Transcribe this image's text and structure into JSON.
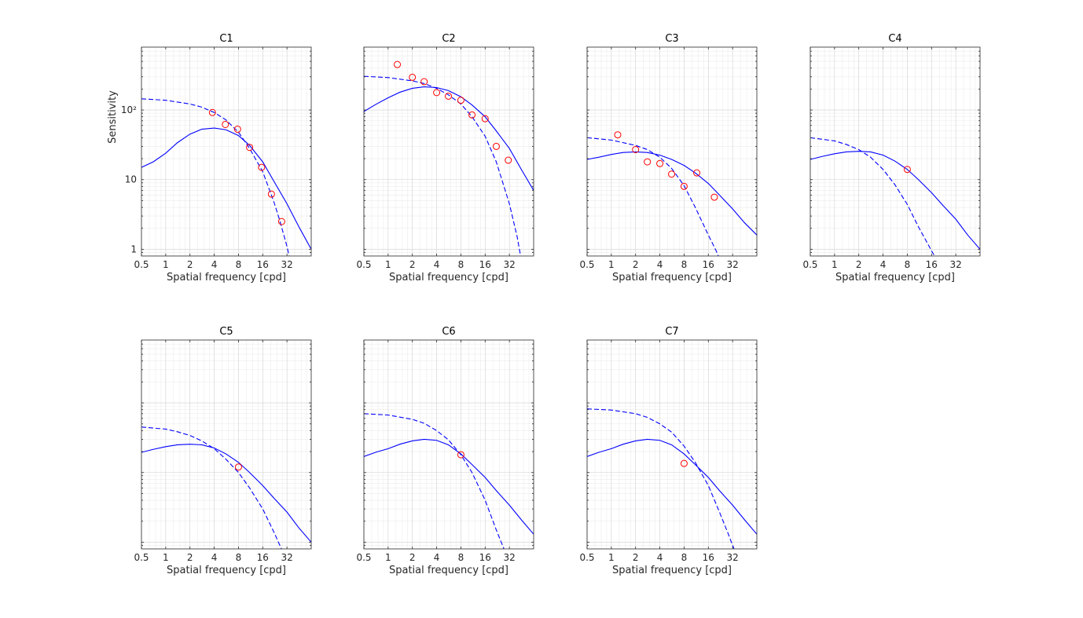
{
  "figure": {
    "xlabel": "Spatial frequency [cpd]",
    "ylabel": "Sensitivity"
  },
  "axes": {
    "xscale": "log2",
    "yscale": "log10",
    "xlim": [
      0.5,
      64
    ],
    "ylim": [
      0.8,
      800
    ],
    "xticks": [
      0.5,
      1,
      2,
      4,
      8,
      16,
      32
    ],
    "xticklabels": [
      "0.5",
      "1",
      "2",
      "4",
      "8",
      "16",
      "32"
    ],
    "yticks": [
      1,
      10,
      100
    ],
    "yticklabels": [
      "1",
      "10",
      "10²"
    ],
    "grid": true
  },
  "colors": {
    "curve": "#0000ff",
    "marker": "#ff0000",
    "grid": "#dfdfdf",
    "axis": "#262626",
    "text": "#262626"
  },
  "chart_data": [
    {
      "type": "line",
      "title": "C1",
      "series": [
        {
          "style": "solid",
          "x": [
            0.5,
            0.7,
            1,
            1.4,
            2,
            2.8,
            4,
            5.6,
            8,
            11,
            16,
            22,
            32,
            45,
            64
          ],
          "y": [
            15,
            18,
            24,
            34,
            45,
            53,
            55,
            52,
            43,
            31,
            18,
            9.5,
            4.5,
            2.1,
            1.0
          ]
        },
        {
          "style": "dashed",
          "x": [
            0.5,
            1,
            2,
            2.8,
            4,
            5.6,
            8,
            11,
            16,
            22,
            26,
            32,
            36
          ],
          "y": [
            145,
            138,
            122,
            110,
            92,
            72,
            48,
            28,
            13,
            4.8,
            2.6,
            1.1,
            0.6
          ]
        },
        {
          "style": "markers",
          "x": [
            3.8,
            5.5,
            7.8,
            11,
            15.5,
            20.5,
            27.5
          ],
          "y": [
            92,
            62,
            53,
            29,
            15,
            6.2,
            2.5
          ]
        }
      ]
    },
    {
      "type": "line",
      "title": "C2",
      "series": [
        {
          "style": "solid",
          "x": [
            0.5,
            0.7,
            1,
            1.4,
            2,
            2.8,
            4,
            5.6,
            8,
            11,
            16,
            22,
            32,
            45,
            64
          ],
          "y": [
            95,
            120,
            150,
            180,
            205,
            215,
            210,
            190,
            155,
            118,
            80,
            50,
            28,
            14,
            7
          ]
        },
        {
          "style": "dashed",
          "x": [
            0.5,
            1,
            2,
            2.8,
            4,
            5.6,
            8,
            11,
            16,
            22,
            32,
            40,
            45
          ],
          "y": [
            305,
            292,
            262,
            240,
            205,
            165,
            122,
            80,
            42,
            18,
            4.5,
            1.5,
            0.7
          ]
        },
        {
          "style": "markers",
          "x": [
            1.3,
            2,
            2.8,
            4,
            5.6,
            8,
            11,
            16,
            22,
            31
          ],
          "y": [
            450,
            295,
            255,
            178,
            158,
            138,
            85,
            75,
            30,
            19
          ]
        }
      ]
    },
    {
      "type": "line",
      "title": "C3",
      "series": [
        {
          "style": "solid",
          "x": [
            0.5,
            0.7,
            1,
            1.4,
            2,
            2.8,
            4,
            5.6,
            8,
            11,
            16,
            22,
            32,
            45,
            64
          ],
          "y": [
            19.5,
            21,
            23,
            24.5,
            25,
            24.5,
            22.5,
            19.5,
            16,
            12.5,
            8.8,
            6,
            3.8,
            2.4,
            1.6
          ]
        },
        {
          "style": "dashed",
          "x": [
            0.5,
            1,
            2,
            2.8,
            4,
            5.6,
            8,
            11,
            16,
            20,
            23
          ],
          "y": [
            40,
            37,
            31,
            27,
            21,
            14.5,
            8.2,
            4,
            1.6,
            0.95,
            0.65
          ]
        },
        {
          "style": "markers",
          "x": [
            1.2,
            2,
            2.8,
            4,
            5.6,
            8,
            11.5,
            19
          ],
          "y": [
            44,
            27,
            18,
            17,
            12,
            8,
            12.5,
            5.6
          ]
        }
      ]
    },
    {
      "type": "line",
      "title": "C4",
      "series": [
        {
          "style": "solid",
          "x": [
            0.5,
            0.7,
            1,
            1.4,
            2,
            2.8,
            4,
            5.6,
            8,
            11,
            16,
            22,
            32,
            45,
            64
          ],
          "y": [
            19.5,
            21.5,
            23.5,
            25,
            25.5,
            25,
            22.5,
            18.5,
            14,
            10,
            6.5,
            4.3,
            2.7,
            1.6,
            1.0
          ]
        },
        {
          "style": "dashed",
          "x": [
            0.5,
            1,
            1.4,
            2,
            2.8,
            4,
            5.6,
            8,
            11,
            16,
            18,
            19
          ],
          "y": [
            40,
            36,
            32,
            27,
            21,
            14,
            8.5,
            4.4,
            2.1,
            0.95,
            0.75,
            0.65
          ]
        },
        {
          "style": "markers",
          "x": [
            8
          ],
          "y": [
            14
          ]
        }
      ]
    },
    {
      "type": "line",
      "title": "C5",
      "series": [
        {
          "style": "solid",
          "x": [
            0.5,
            0.7,
            1,
            1.4,
            2,
            2.8,
            4,
            5.6,
            8,
            11,
            16,
            22,
            32,
            45,
            64
          ],
          "y": [
            19.5,
            21.5,
            23.5,
            25,
            25.5,
            25,
            22.5,
            18.5,
            14,
            10,
            6.5,
            4.3,
            2.7,
            1.6,
            1.0
          ]
        },
        {
          "style": "dashed",
          "x": [
            0.5,
            1,
            1.4,
            2,
            2.8,
            4,
            5.6,
            8,
            11,
            16,
            22,
            28,
            30
          ],
          "y": [
            45,
            42,
            38.5,
            34,
            28.5,
            22,
            15.5,
            10,
            6,
            3,
            1.4,
            0.75,
            0.6
          ]
        },
        {
          "style": "markers",
          "x": [
            8
          ],
          "y": [
            12
          ]
        }
      ]
    },
    {
      "type": "line",
      "title": "C6",
      "series": [
        {
          "style": "solid",
          "x": [
            0.5,
            0.7,
            1,
            1.4,
            2,
            2.8,
            4,
            5.6,
            8,
            11,
            16,
            22,
            32,
            45,
            64
          ],
          "y": [
            17,
            19.5,
            22,
            25.5,
            28.5,
            30,
            29,
            25,
            18.5,
            13,
            8.5,
            5.5,
            3.4,
            2.1,
            1.3
          ]
        },
        {
          "style": "dashed",
          "x": [
            0.5,
            1,
            2,
            2.8,
            4,
            5.6,
            8,
            11,
            16,
            22,
            28,
            31
          ],
          "y": [
            70,
            67,
            58,
            51,
            40,
            29.5,
            18,
            10,
            4,
            1.5,
            0.75,
            0.55
          ]
        },
        {
          "style": "markers",
          "x": [
            8
          ],
          "y": [
            18
          ]
        }
      ]
    },
    {
      "type": "line",
      "title": "C7",
      "series": [
        {
          "style": "solid",
          "x": [
            0.5,
            0.7,
            1,
            1.4,
            2,
            2.8,
            4,
            5.6,
            8,
            11,
            16,
            22,
            32,
            45,
            64
          ],
          "y": [
            17,
            19.5,
            22,
            25.5,
            28.5,
            30,
            29,
            25,
            18.5,
            13,
            8.5,
            5.5,
            3.4,
            2.1,
            1.3
          ]
        },
        {
          "style": "dashed",
          "x": [
            0.5,
            1,
            2,
            2.8,
            4,
            5.6,
            8,
            11,
            16,
            22,
            28,
            32,
            37
          ],
          "y": [
            82,
            79,
            70,
            62,
            50,
            38,
            24,
            14,
            6.5,
            2.7,
            1.35,
            0.9,
            0.6
          ]
        },
        {
          "style": "markers",
          "x": [
            8
          ],
          "y": [
            13.5
          ]
        }
      ]
    }
  ]
}
